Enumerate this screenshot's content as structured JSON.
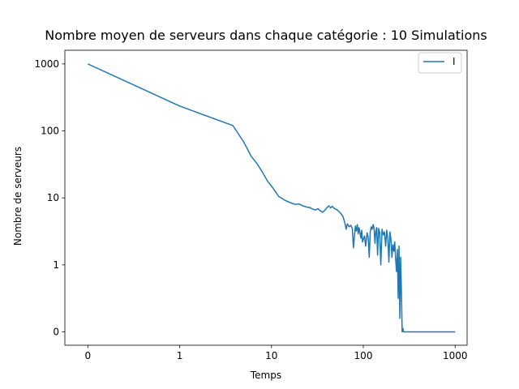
{
  "chart_data": {
    "type": "line",
    "title": "Nombre moyen de serveurs dans chaque catégorie : 10 Simulations",
    "xlabel": "Temps",
    "ylabel": "Nombre de serveurs",
    "xscale": "symlog",
    "yscale": "symlog",
    "xlim": [
      -0.25,
      1350
    ],
    "ylim": [
      -0.2,
      1600
    ],
    "xticks": [
      0,
      1,
      10,
      100,
      1000
    ],
    "xtick_labels": [
      "0",
      "1",
      "10",
      "100",
      "1000"
    ],
    "yticks": [
      0,
      1,
      10,
      100,
      1000
    ],
    "ytick_labels": [
      "0",
      "1",
      "10",
      "100",
      "1000"
    ],
    "grid": false,
    "legend_position": "top-right",
    "series": [
      {
        "name": "I",
        "color": "#1f77b4",
        "points": [
          [
            0,
            1000
          ],
          [
            1,
            235
          ],
          [
            3.8,
            120
          ],
          [
            5,
            68
          ],
          [
            6,
            42
          ],
          [
            7,
            32
          ],
          [
            8,
            24
          ],
          [
            9,
            18
          ],
          [
            10,
            15
          ],
          [
            11,
            12.5
          ],
          [
            12,
            10.5
          ],
          [
            14,
            9.2
          ],
          [
            16,
            8.5
          ],
          [
            18,
            8
          ],
          [
            20,
            8.1
          ],
          [
            22,
            7.6
          ],
          [
            24,
            7.3
          ],
          [
            26,
            7.2
          ],
          [
            28,
            6.8
          ],
          [
            30,
            6.6
          ],
          [
            32,
            6.9
          ],
          [
            34,
            6.4
          ],
          [
            36,
            6.1
          ],
          [
            38,
            6.5
          ],
          [
            40,
            7.1
          ],
          [
            42,
            7.6
          ],
          [
            44,
            7.1
          ],
          [
            46,
            7.5
          ],
          [
            48,
            7.0
          ],
          [
            52,
            6.6
          ],
          [
            56,
            6.0
          ],
          [
            60,
            5.3
          ],
          [
            63,
            4.2
          ],
          [
            65,
            3.4
          ],
          [
            67,
            4.1
          ],
          [
            70,
            3.7
          ],
          [
            73,
            3.9
          ],
          [
            76,
            3.5
          ],
          [
            78,
            1.8
          ],
          [
            80,
            2.6
          ],
          [
            82,
            3.8
          ],
          [
            84,
            3.2
          ],
          [
            86,
            4.0
          ],
          [
            88,
            2.9
          ],
          [
            90,
            3.6
          ],
          [
            92,
            3.0
          ],
          [
            94,
            2.5
          ],
          [
            96,
            3.3
          ],
          [
            98,
            2.2
          ],
          [
            100,
            2.4
          ],
          [
            103,
            2.7
          ],
          [
            106,
            1.9
          ],
          [
            110,
            3.0
          ],
          [
            113,
            2.6
          ],
          [
            116,
            1.3
          ],
          [
            119,
            3.1
          ],
          [
            122,
            3.7
          ],
          [
            125,
            3.4
          ],
          [
            128,
            4.0
          ],
          [
            131,
            3.5
          ],
          [
            134,
            2.1
          ],
          [
            137,
            3.2
          ],
          [
            140,
            3.6
          ],
          [
            143,
            1.4
          ],
          [
            147,
            3.5
          ],
          [
            151,
            3.0
          ],
          [
            155,
            1.0
          ],
          [
            160,
            3.4
          ],
          [
            165,
            2.8
          ],
          [
            170,
            3.1
          ],
          [
            175,
            1.9
          ],
          [
            180,
            3.3
          ],
          [
            185,
            2.5
          ],
          [
            190,
            1.1
          ],
          [
            195,
            3.1
          ],
          [
            200,
            2.4
          ],
          [
            205,
            1.3
          ],
          [
            210,
            2.0
          ],
          [
            215,
            1.6
          ],
          [
            220,
            2.2
          ],
          [
            225,
            1.2
          ],
          [
            230,
            0.9
          ],
          [
            235,
            1.7
          ],
          [
            240,
            0.5
          ],
          [
            245,
            1.9
          ],
          [
            250,
            0.2
          ],
          [
            255,
            1.3
          ],
          [
            260,
            0.6
          ],
          [
            265,
            0.0
          ],
          [
            270,
            0.05
          ],
          [
            275,
            0.0
          ],
          [
            280,
            0.0
          ],
          [
            1000,
            0.0
          ]
        ]
      }
    ]
  }
}
